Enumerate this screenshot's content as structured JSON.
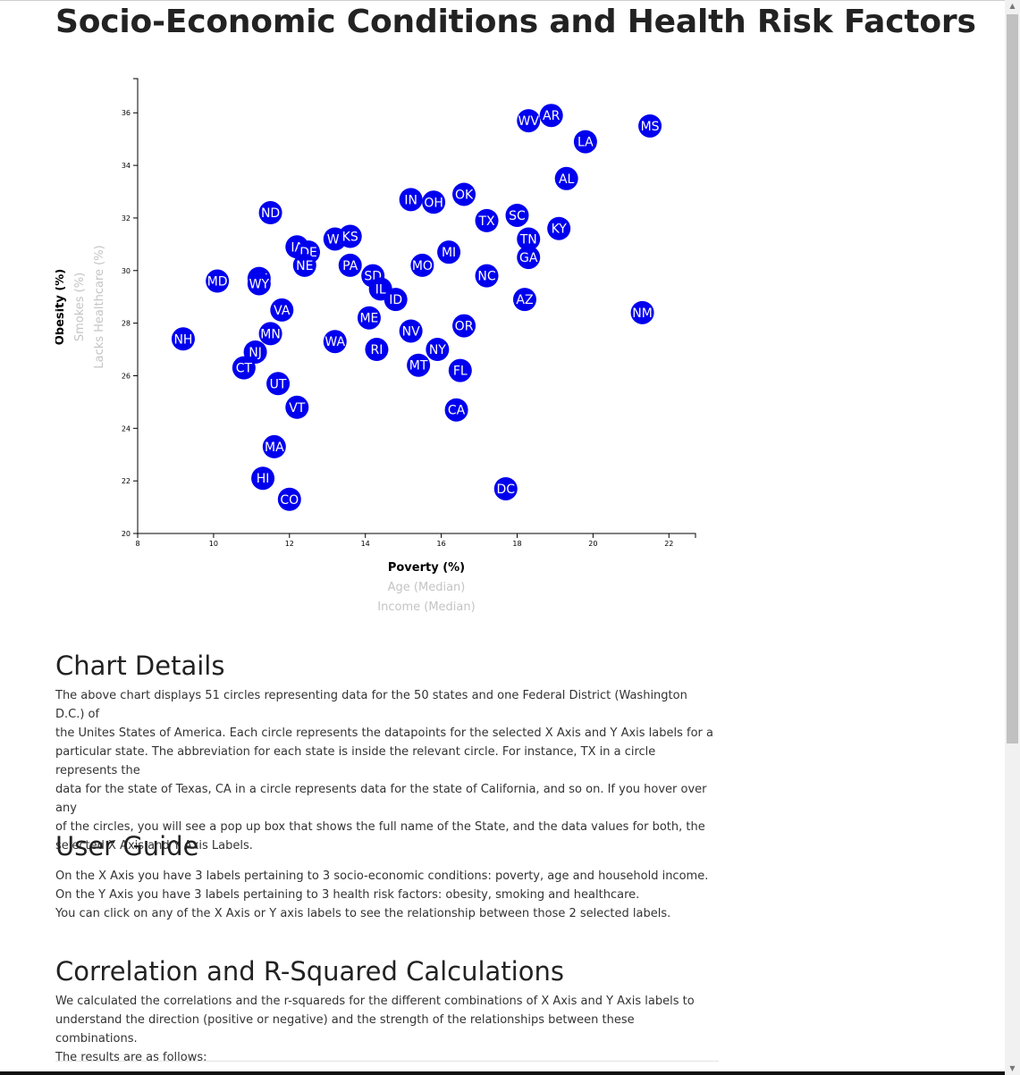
{
  "page_title": "Socio-Economic Conditions and Health Risk Factors",
  "chart_data": {
    "type": "scatter",
    "x_labels": [
      {
        "text": "Poverty (%)",
        "active": true
      },
      {
        "text": "Age (Median)",
        "active": false
      },
      {
        "text": "Income (Median)",
        "active": false
      }
    ],
    "y_labels": [
      {
        "text": "Obesity (%)",
        "active": true
      },
      {
        "text": "Smokes (%)",
        "active": false
      },
      {
        "text": "Lacks Healthcare (%)",
        "active": false
      }
    ],
    "xlim": [
      8,
      22.7
    ],
    "ylim": [
      20,
      37.3
    ],
    "x_ticks": [
      "8",
      "10",
      "12",
      "14",
      "16",
      "18",
      "20",
      "22"
    ],
    "y_ticks": [
      "20",
      "22",
      "24",
      "26",
      "28",
      "30",
      "32",
      "34",
      "36"
    ],
    "marker_color": "#0000ee",
    "label_color": "#ffffff",
    "points": [
      {
        "abbr": "WV",
        "x": 18.3,
        "y": 35.7
      },
      {
        "abbr": "AR",
        "x": 18.9,
        "y": 35.9
      },
      {
        "abbr": "MS",
        "x": 21.5,
        "y": 35.5
      },
      {
        "abbr": "LA",
        "x": 19.8,
        "y": 34.9
      },
      {
        "abbr": "AL",
        "x": 19.3,
        "y": 33.5
      },
      {
        "abbr": "OK",
        "x": 16.6,
        "y": 32.9
      },
      {
        "abbr": "IN",
        "x": 15.2,
        "y": 32.7
      },
      {
        "abbr": "OH",
        "x": 15.8,
        "y": 32.6
      },
      {
        "abbr": "ND",
        "x": 11.5,
        "y": 32.2
      },
      {
        "abbr": "TX",
        "x": 17.2,
        "y": 31.9
      },
      {
        "abbr": "SC",
        "x": 18.0,
        "y": 32.1
      },
      {
        "abbr": "KY",
        "x": 19.1,
        "y": 31.6
      },
      {
        "abbr": "TN",
        "x": 18.3,
        "y": 31.2
      },
      {
        "abbr": "WI",
        "x": 13.2,
        "y": 31.2
      },
      {
        "abbr": "KS",
        "x": 13.6,
        "y": 31.3
      },
      {
        "abbr": "IA",
        "x": 12.2,
        "y": 30.9
      },
      {
        "abbr": "DE",
        "x": 12.5,
        "y": 30.7
      },
      {
        "abbr": "MI",
        "x": 16.2,
        "y": 30.7
      },
      {
        "abbr": "GA",
        "x": 18.3,
        "y": 30.5
      },
      {
        "abbr": "NE",
        "x": 12.4,
        "y": 30.2
      },
      {
        "abbr": "PA",
        "x": 13.6,
        "y": 30.2
      },
      {
        "abbr": "MO",
        "x": 15.5,
        "y": 30.2
      },
      {
        "abbr": "SD",
        "x": 14.2,
        "y": 29.8
      },
      {
        "abbr": "NC",
        "x": 17.2,
        "y": 29.8
      },
      {
        "abbr": "MD",
        "x": 10.1,
        "y": 29.6
      },
      {
        "abbr": "AK",
        "x": 11.2,
        "y": 29.7
      },
      {
        "abbr": "WY",
        "x": 11.2,
        "y": 29.5
      },
      {
        "abbr": "IL",
        "x": 14.4,
        "y": 29.3
      },
      {
        "abbr": "ID",
        "x": 14.8,
        "y": 28.9
      },
      {
        "abbr": "AZ",
        "x": 18.2,
        "y": 28.9
      },
      {
        "abbr": "VA",
        "x": 11.8,
        "y": 28.5
      },
      {
        "abbr": "NM",
        "x": 21.3,
        "y": 28.4
      },
      {
        "abbr": "ME",
        "x": 14.1,
        "y": 28.2
      },
      {
        "abbr": "OR",
        "x": 16.6,
        "y": 27.9
      },
      {
        "abbr": "NV",
        "x": 15.2,
        "y": 27.7
      },
      {
        "abbr": "MN",
        "x": 11.5,
        "y": 27.6
      },
      {
        "abbr": "NH",
        "x": 9.2,
        "y": 27.4
      },
      {
        "abbr": "WA",
        "x": 13.2,
        "y": 27.3
      },
      {
        "abbr": "RI",
        "x": 14.3,
        "y": 27.0
      },
      {
        "abbr": "NY",
        "x": 15.9,
        "y": 27.0
      },
      {
        "abbr": "NJ",
        "x": 11.1,
        "y": 26.9
      },
      {
        "abbr": "CT",
        "x": 10.8,
        "y": 26.3
      },
      {
        "abbr": "MT",
        "x": 15.4,
        "y": 26.4
      },
      {
        "abbr": "FL",
        "x": 16.5,
        "y": 26.2
      },
      {
        "abbr": "UT",
        "x": 11.7,
        "y": 25.7
      },
      {
        "abbr": "VT",
        "x": 12.2,
        "y": 24.8
      },
      {
        "abbr": "CA",
        "x": 16.4,
        "y": 24.7
      },
      {
        "abbr": "MA",
        "x": 11.6,
        "y": 23.3
      },
      {
        "abbr": "HI",
        "x": 11.3,
        "y": 22.1
      },
      {
        "abbr": "DC",
        "x": 17.7,
        "y": 21.7
      },
      {
        "abbr": "CO",
        "x": 12.0,
        "y": 21.3
      }
    ]
  },
  "chart_details": {
    "heading": "Chart Details",
    "lines": [
      "The above chart displays 51 circles representing data for the 50 states and one Federal District (Washington D.C.) of",
      "the Unites States of America. Each circle represents the datapoints for the selected X Axis and Y Axis labels for a",
      "particular state. The abbreviation for each state is inside the relevant circle. For instance, TX in a circle represents the",
      "data for the state of Texas, CA in a circle represents data for the state of California, and so on. If you hover over any",
      "of the circles, you will see a pop up box that shows the full name of the State, and the data values for both, the",
      "selected X Axis and Y Axis Labels."
    ]
  },
  "user_guide": {
    "heading": "User Guide",
    "lines": [
      "On the X Axis you have 3 labels pertaining to 3 socio-economic conditions: poverty, age and household income.",
      "On the Y Axis you have 3 labels pertaining to 3 health risk factors: obesity, smoking and healthcare.",
      "You can click on any of the X Axis or Y axis labels to see the relationship between those 2 selected labels."
    ]
  },
  "correlation": {
    "heading": "Correlation and R-Squared Calculations",
    "lines": [
      "We calculated the correlations and the r-squareds for the different combinations of X Axis and Y Axis labels to",
      "understand the direction (positive or negative) and the strength of the relationships between these combinations.",
      "The results are as follows:"
    ]
  }
}
